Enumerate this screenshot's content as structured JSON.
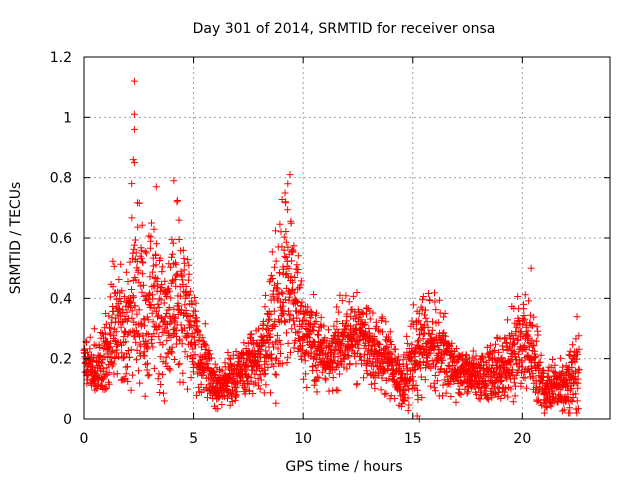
{
  "chart_data": {
    "type": "scatter",
    "title": "Day 301 of 2014, SRMTID for receiver onsa",
    "xlabel": "GPS time / hours",
    "ylabel": "SRMTID / TECUs",
    "xlim": [
      0,
      24
    ],
    "ylim": [
      0,
      1.2
    ],
    "x_ticks": [
      "0",
      "5",
      "10",
      "15",
      "20"
    ],
    "y_ticks": [
      "0",
      "0.2",
      "0.4",
      "0.6",
      "0.8",
      "1",
      "1.2"
    ],
    "grid": true,
    "marker": "+",
    "color": "#ff0000",
    "sampling_interval_hours": 0.0083,
    "envelope": [
      {
        "x": 0.0,
        "base": 0.2,
        "spread": 0.06,
        "peak": 0.32
      },
      {
        "x": 0.5,
        "base": 0.15,
        "spread": 0.06,
        "peak": 0.3
      },
      {
        "x": 1.0,
        "base": 0.22,
        "spread": 0.1,
        "peak": 0.45
      },
      {
        "x": 1.5,
        "base": 0.3,
        "spread": 0.15,
        "peak": 0.65
      },
      {
        "x": 2.0,
        "base": 0.28,
        "spread": 0.15,
        "peak": 0.6
      },
      {
        "x": 2.3,
        "base": 0.4,
        "spread": 0.2,
        "peak": 0.95
      },
      {
        "x": 2.7,
        "base": 0.35,
        "spread": 0.18,
        "peak": 0.65
      },
      {
        "x": 3.3,
        "base": 0.4,
        "spread": 0.2,
        "peak": 0.77
      },
      {
        "x": 3.8,
        "base": 0.3,
        "spread": 0.15,
        "peak": 0.55
      },
      {
        "x": 4.2,
        "base": 0.4,
        "spread": 0.2,
        "peak": 0.8
      },
      {
        "x": 5.0,
        "base": 0.25,
        "spread": 0.12,
        "peak": 0.5
      },
      {
        "x": 5.5,
        "base": 0.2,
        "spread": 0.08,
        "peak": 0.4
      },
      {
        "x": 6.0,
        "base": 0.1,
        "spread": 0.05,
        "peak": 0.22
      },
      {
        "x": 7.0,
        "base": 0.15,
        "spread": 0.06,
        "peak": 0.25
      },
      {
        "x": 8.0,
        "base": 0.2,
        "spread": 0.08,
        "peak": 0.3
      },
      {
        "x": 8.5,
        "base": 0.3,
        "spread": 0.15,
        "peak": 0.55
      },
      {
        "x": 9.0,
        "base": 0.4,
        "spread": 0.2,
        "peak": 0.75
      },
      {
        "x": 9.4,
        "base": 0.45,
        "spread": 0.22,
        "peak": 0.82
      },
      {
        "x": 10.0,
        "base": 0.28,
        "spread": 0.1,
        "peak": 0.45
      },
      {
        "x": 11.0,
        "base": 0.2,
        "spread": 0.08,
        "peak": 0.38
      },
      {
        "x": 12.0,
        "base": 0.28,
        "spread": 0.1,
        "peak": 0.45
      },
      {
        "x": 13.0,
        "base": 0.25,
        "spread": 0.1,
        "peak": 0.4
      },
      {
        "x": 14.0,
        "base": 0.18,
        "spread": 0.08,
        "peak": 0.35
      },
      {
        "x": 14.5,
        "base": 0.12,
        "spread": 0.06,
        "peak": 0.25
      },
      {
        "x": 15.0,
        "base": 0.2,
        "spread": 0.1,
        "peak": 0.38
      },
      {
        "x": 16.0,
        "base": 0.25,
        "spread": 0.12,
        "peak": 0.48
      },
      {
        "x": 17.0,
        "base": 0.15,
        "spread": 0.06,
        "peak": 0.25
      },
      {
        "x": 18.0,
        "base": 0.14,
        "spread": 0.05,
        "peak": 0.22
      },
      {
        "x": 19.0,
        "base": 0.15,
        "spread": 0.08,
        "peak": 0.3
      },
      {
        "x": 20.0,
        "base": 0.25,
        "spread": 0.12,
        "peak": 0.45
      },
      {
        "x": 20.4,
        "base": 0.22,
        "spread": 0.12,
        "peak": 0.5
      },
      {
        "x": 21.0,
        "base": 0.1,
        "spread": 0.05,
        "peak": 0.2
      },
      {
        "x": 22.0,
        "base": 0.1,
        "spread": 0.06,
        "peak": 0.22
      },
      {
        "x": 22.6,
        "base": 0.2,
        "spread": 0.12,
        "peak": 0.47
      }
    ],
    "highlighted_points": [
      {
        "x": 2.3,
        "y": 1.12
      },
      {
        "x": 2.3,
        "y": 1.01
      },
      {
        "x": 2.3,
        "y": 0.96
      },
      {
        "x": 2.25,
        "y": 0.86
      },
      {
        "x": 2.3,
        "y": 0.85
      },
      {
        "x": 3.3,
        "y": 0.77
      },
      {
        "x": 4.1,
        "y": 0.79
      },
      {
        "x": 9.4,
        "y": 0.81
      },
      {
        "x": 9.3,
        "y": 0.78
      },
      {
        "x": 9.2,
        "y": 0.72
      },
      {
        "x": 20.4,
        "y": 0.5
      },
      {
        "x": 15.2,
        "y": 0.01
      },
      {
        "x": 15.3,
        "y": 0.0
      }
    ]
  }
}
